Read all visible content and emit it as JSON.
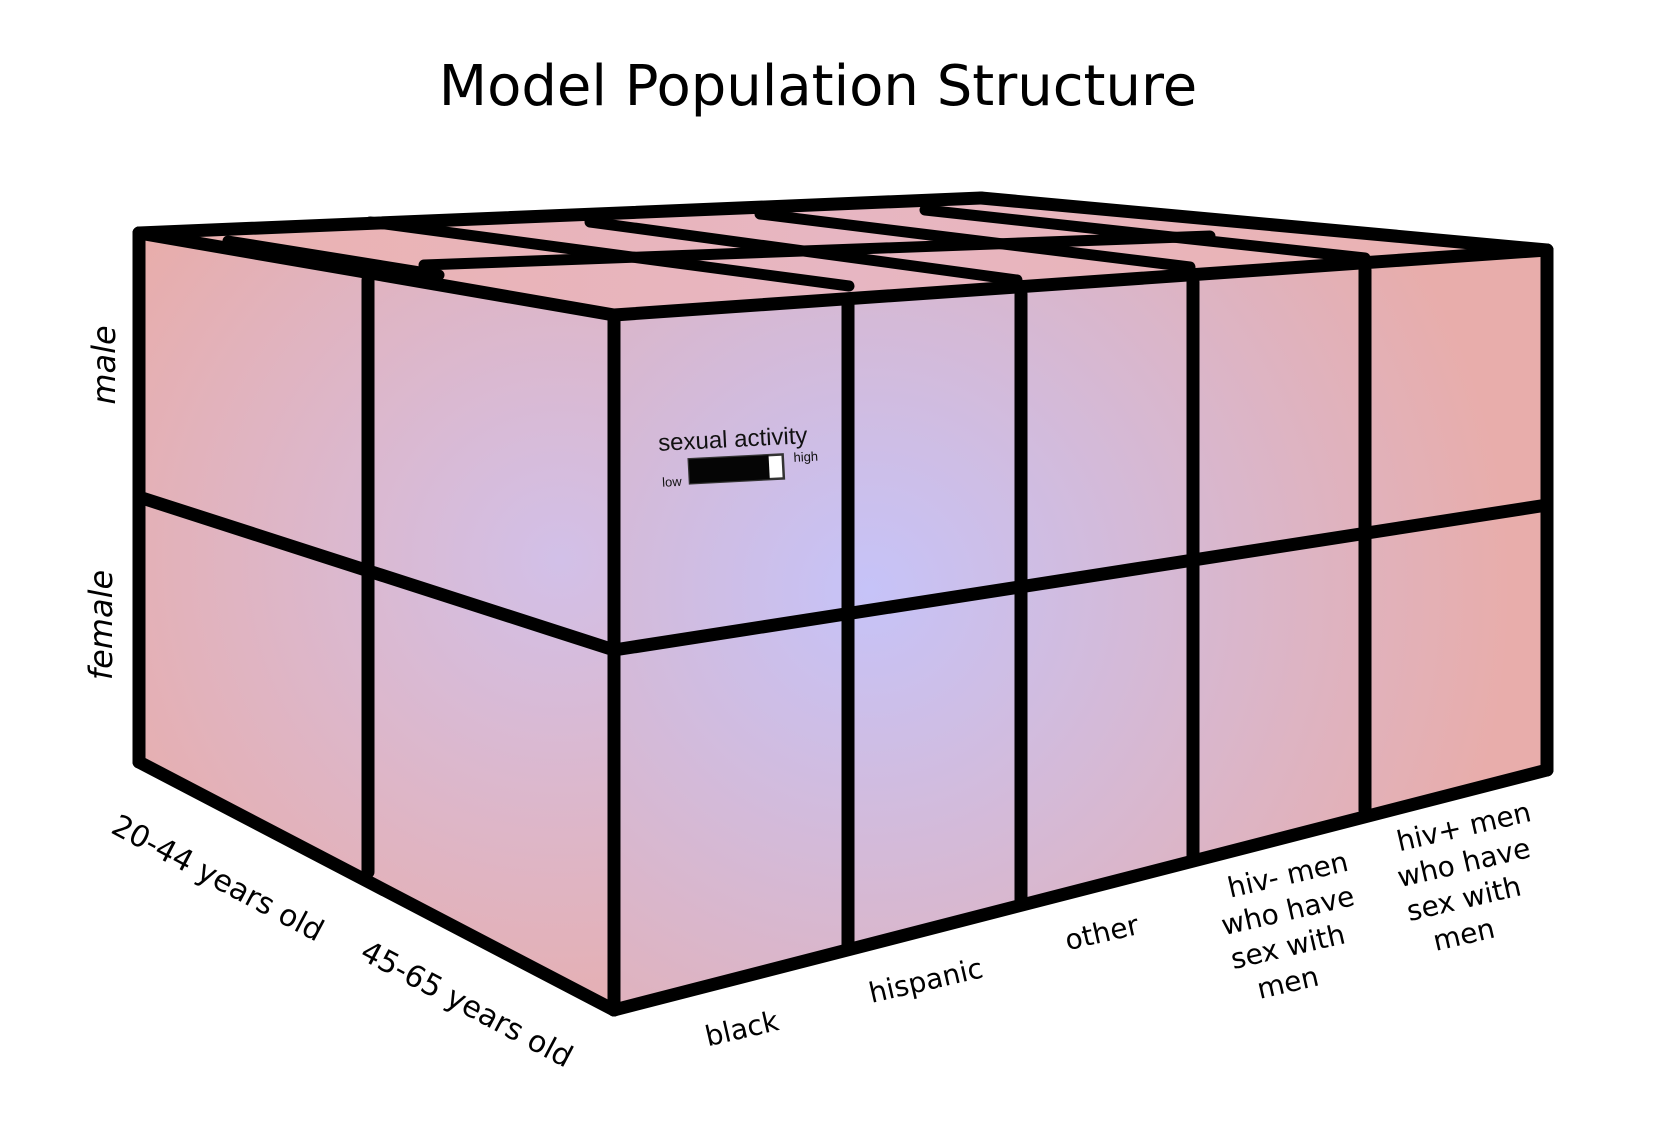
{
  "title": "Model Population Structure",
  "sex_labels": [
    "male",
    "female"
  ],
  "age_labels": [
    "20-44 years old",
    "45-65 years old"
  ],
  "race_labels": [
    [
      "black"
    ],
    [
      "hispanic"
    ],
    [
      "other"
    ],
    [
      "hiv- men",
      "who have",
      "sex with",
      "men"
    ],
    [
      "hiv+ men",
      "who have",
      "sex with",
      "men"
    ]
  ],
  "legend": {
    "title": "sexual activity",
    "low_label": "low",
    "high_label": "high",
    "level": 0.85
  },
  "colors": {
    "edge": "#000000",
    "face_center": "#c6c3f8",
    "face_edge": "#e8adab"
  }
}
